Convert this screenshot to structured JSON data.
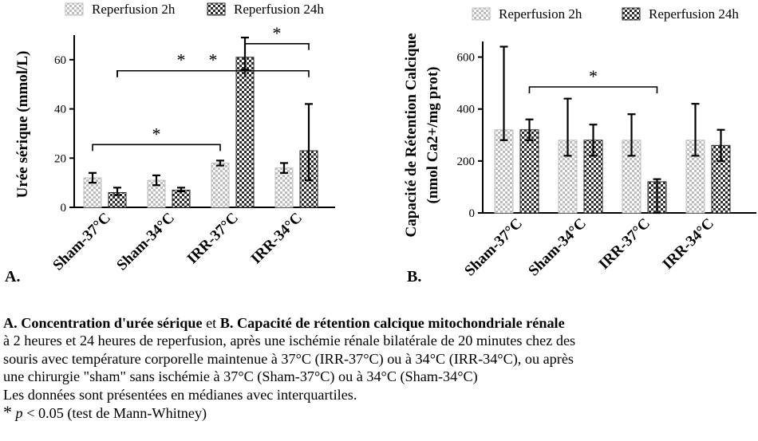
{
  "figure": {
    "panel_a_letter": "A.",
    "panel_b_letter": "B.",
    "legend": [
      "Reperfusion 2h",
      "Reperfusion 24h"
    ],
    "colors": {
      "rep2h": "#bdbdbd",
      "rep24h": "#2b2b2b",
      "axis": "#000000"
    }
  },
  "chart_data": [
    {
      "type": "bar",
      "panel": "A",
      "ylabel": "Urée sérique (mmol/L)",
      "categories": [
        "Sham-37°C",
        "Sham-34°C",
        "IRR-37°C",
        "IRR-34°C"
      ],
      "ylim": [
        0,
        70
      ],
      "yticks": [
        0,
        20,
        40,
        60
      ],
      "legend_position": "top",
      "grid": false,
      "series": [
        {
          "name": "Reperfusion 2h",
          "pattern": "light-checker",
          "values": [
            12,
            11,
            18,
            16
          ],
          "err_low": [
            10,
            9,
            17,
            14
          ],
          "err_high": [
            14,
            13,
            19,
            18
          ]
        },
        {
          "name": "Reperfusion 24h",
          "pattern": "dark-checker",
          "values": [
            6,
            7,
            61,
            23
          ],
          "err_low": [
            5,
            6.5,
            56,
            11
          ],
          "err_high": [
            8,
            8,
            69,
            42
          ]
        }
      ],
      "significance": [
        {
          "from": [
            0,
            0
          ],
          "to": [
            2,
            0
          ],
          "label": "*"
        },
        {
          "from": [
            0,
            1
          ],
          "to": [
            2,
            1
          ],
          "label": "*"
        },
        {
          "from": [
            0,
            1
          ],
          "to": [
            3,
            1
          ],
          "label": "*"
        },
        {
          "from": [
            2,
            1
          ],
          "to": [
            3,
            1
          ],
          "label": "*"
        }
      ]
    },
    {
      "type": "bar",
      "panel": "B",
      "ylabel_line1": "Capacité de Rétention Calcique",
      "ylabel_line2": "(nmol Ca2+/mg prot)",
      "categories": [
        "Sham-37°C",
        "Sham-34°C",
        "IRR-37°C",
        "IRR-34°C"
      ],
      "ylim": [
        0,
        660
      ],
      "yticks": [
        0,
        200,
        400,
        600
      ],
      "legend_position": "top",
      "grid": false,
      "series": [
        {
          "name": "Reperfusion 2h",
          "pattern": "light-checker",
          "values": [
            320,
            280,
            280,
            280
          ],
          "err_low": [
            280,
            220,
            220,
            220
          ],
          "err_high": [
            640,
            440,
            380,
            420
          ]
        },
        {
          "name": "Reperfusion 24h",
          "pattern": "dark-checker",
          "values": [
            320,
            280,
            120,
            260
          ],
          "err_low": [
            280,
            220,
            0,
            200
          ],
          "err_high": [
            360,
            340,
            130,
            320
          ]
        }
      ],
      "significance": [
        {
          "from": [
            0,
            1
          ],
          "to": [
            2,
            1
          ],
          "label": "*"
        }
      ]
    }
  ],
  "caption": {
    "title_a_bold": "A. Concentration d'urée sérique",
    "title_mid": " et ",
    "title_b_bold": "B. Capacité de rétention calcique mitochondriale rénale",
    "line2": "à 2 heures et 24 heures de reperfusion, après une ischémie rénale bilatérale de 20 minutes chez des",
    "line3": "souris avec température corporelle maintenue à 37°C (IRR-37°C) ou à 34°C (IRR-34°C), ou après",
    "line4": "une chirurgie \"sham\" sans ischémie à 37°C (Sham-37°C) ou à 34°C (Sham-34°C)",
    "line5": "Les données sont présentées en médianes avec interquartiles.",
    "footnote_star": "*",
    "footnote_p": "p",
    "footnote_rest": " < 0.05 (test de Mann-Whitney)"
  }
}
